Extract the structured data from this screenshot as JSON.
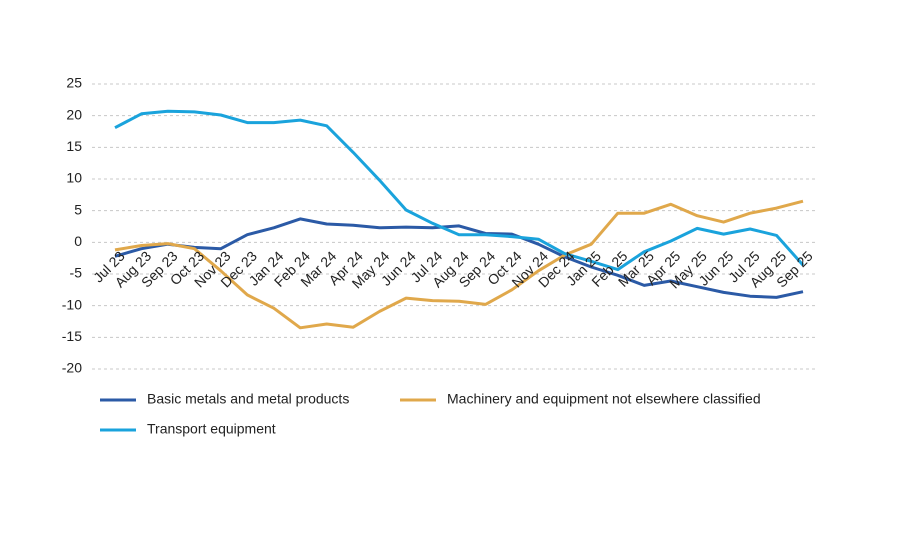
{
  "chart_data": {
    "type": "line",
    "categories": [
      "Jul 23",
      "Aug 23",
      "Sep 23",
      "Oct 23",
      "Nov 23",
      "Dec 23",
      "Jan 24",
      "Feb 24",
      "Mar 24",
      "Apr 24",
      "May 24",
      "Jun 24",
      "Jul 24",
      "Aug 24",
      "Sep 24",
      "Oct 24",
      "Nov 24",
      "Dec 24",
      "Jan 25",
      "Feb 25",
      "Mar 25",
      "Apr 25",
      "May 25",
      "Jun 25",
      "Jul 25",
      "Aug 25",
      "Sep 25"
    ],
    "series": [
      {
        "name": "Basic metals and metal products",
        "color": "#2b5aa6",
        "values": [
          -2.2,
          -1.0,
          -0.3,
          -0.8,
          -1.0,
          1.2,
          2.3,
          3.7,
          2.9,
          2.7,
          2.3,
          2.4,
          2.3,
          2.6,
          1.4,
          1.3,
          -0.3,
          -2.3,
          -3.9,
          -5.2,
          -6.8,
          -6.1,
          -7.0,
          -7.9,
          -8.5,
          -8.7,
          -7.8
        ]
      },
      {
        "name": "Machinery and equipment not elsewhere classified",
        "color": "#e0a84b",
        "values": [
          -1.2,
          -0.5,
          -0.2,
          -1.0,
          -4.5,
          -8.3,
          -10.4,
          -13.5,
          -12.9,
          -13.4,
          -10.9,
          -8.8,
          -9.2,
          -9.3,
          -9.8,
          -7.5,
          -4.5,
          -2.0,
          -0.3,
          4.6,
          4.6,
          6.0,
          4.2,
          3.2,
          4.6,
          5.4,
          6.5
        ]
      },
      {
        "name": "Transport equipment",
        "color": "#1aa3dc",
        "values": [
          18.1,
          20.3,
          20.7,
          20.6,
          20.1,
          18.9,
          18.9,
          19.3,
          18.4,
          14.2,
          9.8,
          5.1,
          3.0,
          1.2,
          1.2,
          0.9,
          0.5,
          -1.8,
          -3.0,
          -4.3,
          -1.5,
          0.2,
          2.2,
          1.3,
          2.1,
          1.1,
          -3.6
        ]
      }
    ],
    "ylim": [
      -20,
      25
    ],
    "yticks": [
      25,
      20,
      15,
      10,
      5,
      0,
      -5,
      -10,
      -15,
      -20
    ],
    "grid": true
  }
}
